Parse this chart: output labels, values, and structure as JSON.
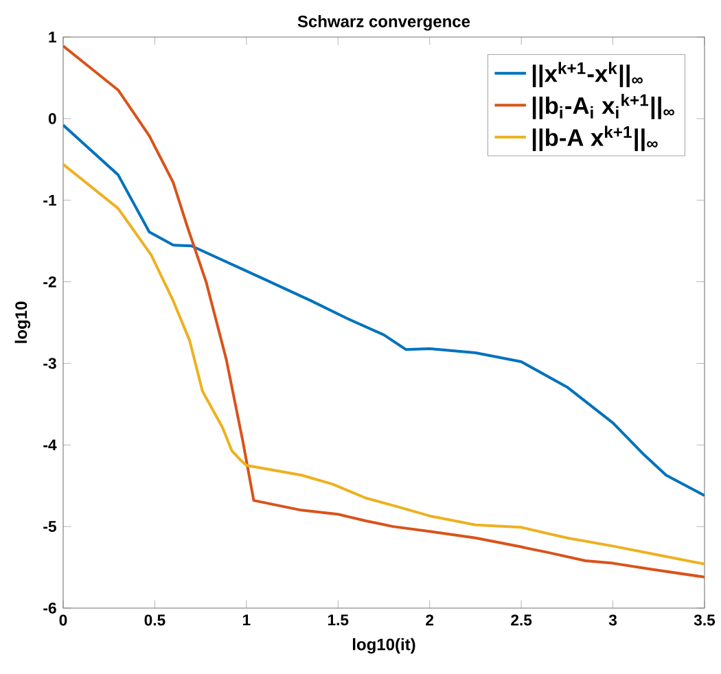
{
  "chart_data": {
    "type": "line",
    "title": "Schwarz convergence",
    "xlabel": "log10(it)",
    "ylabel": "log10",
    "xlim": [
      0,
      3.5
    ],
    "ylim": [
      -6,
      1
    ],
    "xticks": [
      0,
      0.5,
      1,
      1.5,
      2,
      2.5,
      3,
      3.5
    ],
    "yticks": [
      -6,
      -5,
      -4,
      -3,
      -2,
      -1,
      0,
      1
    ],
    "grid": false,
    "legend": "top right",
    "series": [
      {
        "name": "||x$^{k+1}$-x$^{k}$||$_{∞}$",
        "color": "#0072bd",
        "x": [
          0,
          0.3,
          0.47,
          0.6,
          0.7,
          1.08,
          1.35,
          1.55,
          1.75,
          1.87,
          2.0,
          2.25,
          2.5,
          2.75,
          3.0,
          3.17,
          3.29,
          3.5
        ],
        "values": [
          -0.08,
          -0.69,
          -1.39,
          -1.55,
          -1.56,
          -1.95,
          -2.23,
          -2.45,
          -2.65,
          -2.83,
          -2.82,
          -2.87,
          -2.98,
          -3.29,
          -3.73,
          -4.12,
          -4.37,
          -4.62
        ]
      },
      {
        "name": "||b$_{i}$-A$_{i}$ x$_{i}$$^{k+1}$||$_{∞}$",
        "color": "#d95319",
        "x": [
          0,
          0.3,
          0.47,
          0.6,
          0.68,
          0.78,
          0.89,
          0.98,
          1.04,
          1.3,
          1.5,
          1.65,
          1.8,
          2.0,
          2.25,
          2.5,
          2.65,
          2.85,
          3.0,
          3.2,
          3.5
        ],
        "values": [
          0.89,
          0.35,
          -0.21,
          -0.78,
          -1.34,
          -2.0,
          -2.95,
          -3.95,
          -4.68,
          -4.8,
          -4.85,
          -4.93,
          -5.0,
          -5.06,
          -5.14,
          -5.25,
          -5.32,
          -5.42,
          -5.45,
          -5.52,
          -5.62
        ]
      },
      {
        "name": "||b-A x$^{k+1}$||$_{∞}$",
        "color": "#edb120",
        "x": [
          0,
          0.3,
          0.48,
          0.6,
          0.69,
          0.76,
          0.87,
          0.92,
          0.97,
          1.0,
          1.3,
          1.47,
          1.65,
          1.83,
          2.0,
          2.25,
          2.5,
          2.75,
          3.0,
          3.25,
          3.5
        ],
        "values": [
          -0.56,
          -1.1,
          -1.67,
          -2.23,
          -2.72,
          -3.34,
          -3.79,
          -4.07,
          -4.19,
          -4.25,
          -4.37,
          -4.48,
          -4.65,
          -4.76,
          -4.87,
          -4.98,
          -5.01,
          -5.14,
          -5.24,
          -5.35,
          -5.46
        ]
      }
    ]
  }
}
